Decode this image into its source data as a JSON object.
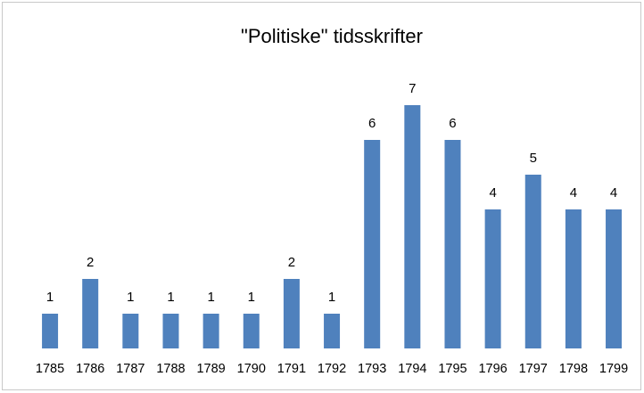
{
  "chart_data": {
    "type": "bar",
    "title": "\"Politiske\" tidsskrifter",
    "categories": [
      "1785",
      "1786",
      "1787",
      "1788",
      "1789",
      "1790",
      "1791",
      "1792",
      "1793",
      "1794",
      "1795",
      "1796",
      "1797",
      "1798",
      "1799"
    ],
    "values": [
      1,
      2,
      1,
      1,
      1,
      1,
      2,
      1,
      6,
      7,
      6,
      4,
      5,
      4,
      4
    ],
    "color": "#4f81bd",
    "grid": false
  }
}
